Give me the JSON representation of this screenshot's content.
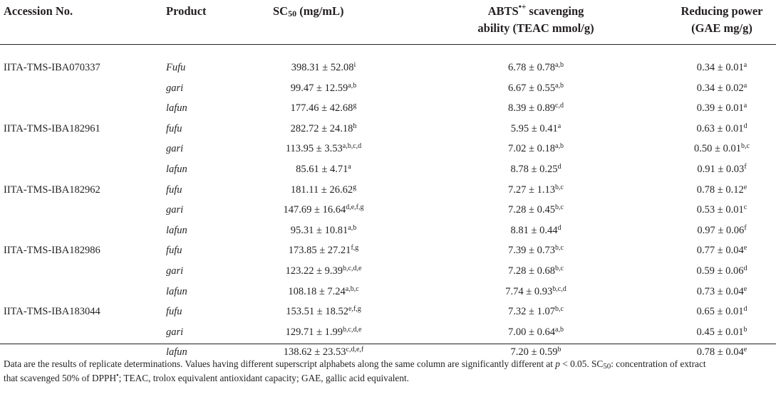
{
  "headers": {
    "accession": "Accession No.",
    "product": "Product",
    "sc50_prefix": "SC",
    "sc50_sub": "50",
    "sc50_unit": " (mg/mL)",
    "abts_prefix": "ABTS",
    "abts_sup": "•+",
    "abts_line1_suffix": " scavenging",
    "abts_line2": "ability (TEAC mmol/g)",
    "rp_line1": "Reducing power",
    "rp_line2": "(GAE mg/g)"
  },
  "rows": [
    {
      "accession": "IITA-TMS-IBA070337",
      "product": "Fufu",
      "sc50": "398.31 ± 52.08",
      "sc50_sup": "i",
      "abts": "6.78 ± 0.78",
      "abts_sup": "a,b",
      "rp": "0.34 ± 0.01",
      "rp_sup": "a"
    },
    {
      "accession": "",
      "product": "gari",
      "sc50": "99.47 ± 12.59",
      "sc50_sup": "a,b",
      "abts": "6.67 ± 0.55",
      "abts_sup": "a,b",
      "rp": "0.34 ± 0.02",
      "rp_sup": "a"
    },
    {
      "accession": "",
      "product": "lafun",
      "sc50": "177.46 ± 42.68",
      "sc50_sup": "g",
      "abts": "8.39 ± 0.89",
      "abts_sup": "c,d",
      "rp": "0.39 ± 0.01",
      "rp_sup": "a"
    },
    {
      "accession": "IITA-TMS-IBA182961",
      "product": "fufu",
      "sc50": "282.72 ± 24.18",
      "sc50_sup": "h",
      "abts": "5.95 ± 0.41",
      "abts_sup": "a",
      "rp": "0.63 ± 0.01",
      "rp_sup": "d"
    },
    {
      "accession": "",
      "product": "gari",
      "sc50": "113.95 ± 3.53",
      "sc50_sup": "a,b,c,d",
      "abts": "7.02 ± 0.18",
      "abts_sup": "a,b",
      "rp": "0.50 ± 0.01",
      "rp_sup": "b,c"
    },
    {
      "accession": "",
      "product": "lafun",
      "sc50": "85.61 ± 4.71",
      "sc50_sup": "a",
      "abts": "8.78 ± 0.25",
      "abts_sup": "d",
      "rp": "0.91 ± 0.03",
      "rp_sup": "f"
    },
    {
      "accession": "IITA-TMS-IBA182962",
      "product": "fufu",
      "sc50": "181.11 ± 26.62",
      "sc50_sup": "g",
      "abts": "7.27 ± 1.13",
      "abts_sup": "b,c",
      "rp": "0.78 ± 0.12",
      "rp_sup": "e"
    },
    {
      "accession": "",
      "product": "gari",
      "sc50": "147.69 ± 16.64",
      "sc50_sup": "d,e,f,g",
      "abts": "7.28 ± 0.45",
      "abts_sup": "b,c",
      "rp": "0.53 ± 0.01",
      "rp_sup": "c"
    },
    {
      "accession": "",
      "product": "lafun",
      "sc50": "95.31 ± 10.81",
      "sc50_sup": "a,b",
      "abts": "8.81 ± 0.44",
      "abts_sup": "d",
      "rp": "0.97 ± 0.06",
      "rp_sup": "f"
    },
    {
      "accession": "IITA-TMS-IBA182986",
      "product": "fufu",
      "sc50": "173.85 ± 27.21",
      "sc50_sup": "f,g",
      "abts": "7.39 ± 0.73",
      "abts_sup": "b,c",
      "rp": "0.77 ± 0.04",
      "rp_sup": "e"
    },
    {
      "accession": "",
      "product": "gari",
      "sc50": "123.22 ± 9.39",
      "sc50_sup": "b,c,d,e",
      "abts": "7.28 ± 0.68",
      "abts_sup": "b,c",
      "rp": "0.59 ± 0.06",
      "rp_sup": "d"
    },
    {
      "accession": "",
      "product": "lafun",
      "sc50": "108.18 ± 7.24",
      "sc50_sup": "a,b,c",
      "abts": "7.74 ± 0.93",
      "abts_sup": "b,c,d",
      "rp": "0.73 ± 0.04",
      "rp_sup": "e"
    },
    {
      "accession": "IITA-TMS-IBA183044",
      "product": "fufu",
      "sc50": "153.51 ± 18.52",
      "sc50_sup": "e,f,g",
      "abts": "7.32 ± 1.07",
      "abts_sup": "b,c",
      "rp": "0.65 ± 0.01",
      "rp_sup": "d"
    },
    {
      "accession": "",
      "product": "gari",
      "sc50": "129.71 ± 1.99",
      "sc50_sup": "b,c,d,e",
      "abts": "7.00 ± 0.64",
      "abts_sup": "a,b",
      "rp": "0.45 ± 0.01",
      "rp_sup": "b"
    },
    {
      "accession": "",
      "product": "lafun",
      "sc50": "138.62 ± 23.53",
      "sc50_sup": "c,d,e,f",
      "abts": "7.20 ± 0.59",
      "abts_sup": "b",
      "rp": "0.78 ± 0.04",
      "rp_sup": "e"
    }
  ],
  "footnote": {
    "line1_a": "Data are the results of replicate determinations. Values having different superscript alphabets along the same column are significantly different at ",
    "p_letter": "p",
    "line1_b": " < 0.05. SC",
    "sc_sub": "50",
    "line1_c": ": concentration of extract",
    "line2_a": "that scavenged 50% of DPPH",
    "dpph_sup": "•",
    "line2_b": "; TEAC, trolox equivalent antioxidant capacity; GAE, gallic acid equivalent."
  }
}
